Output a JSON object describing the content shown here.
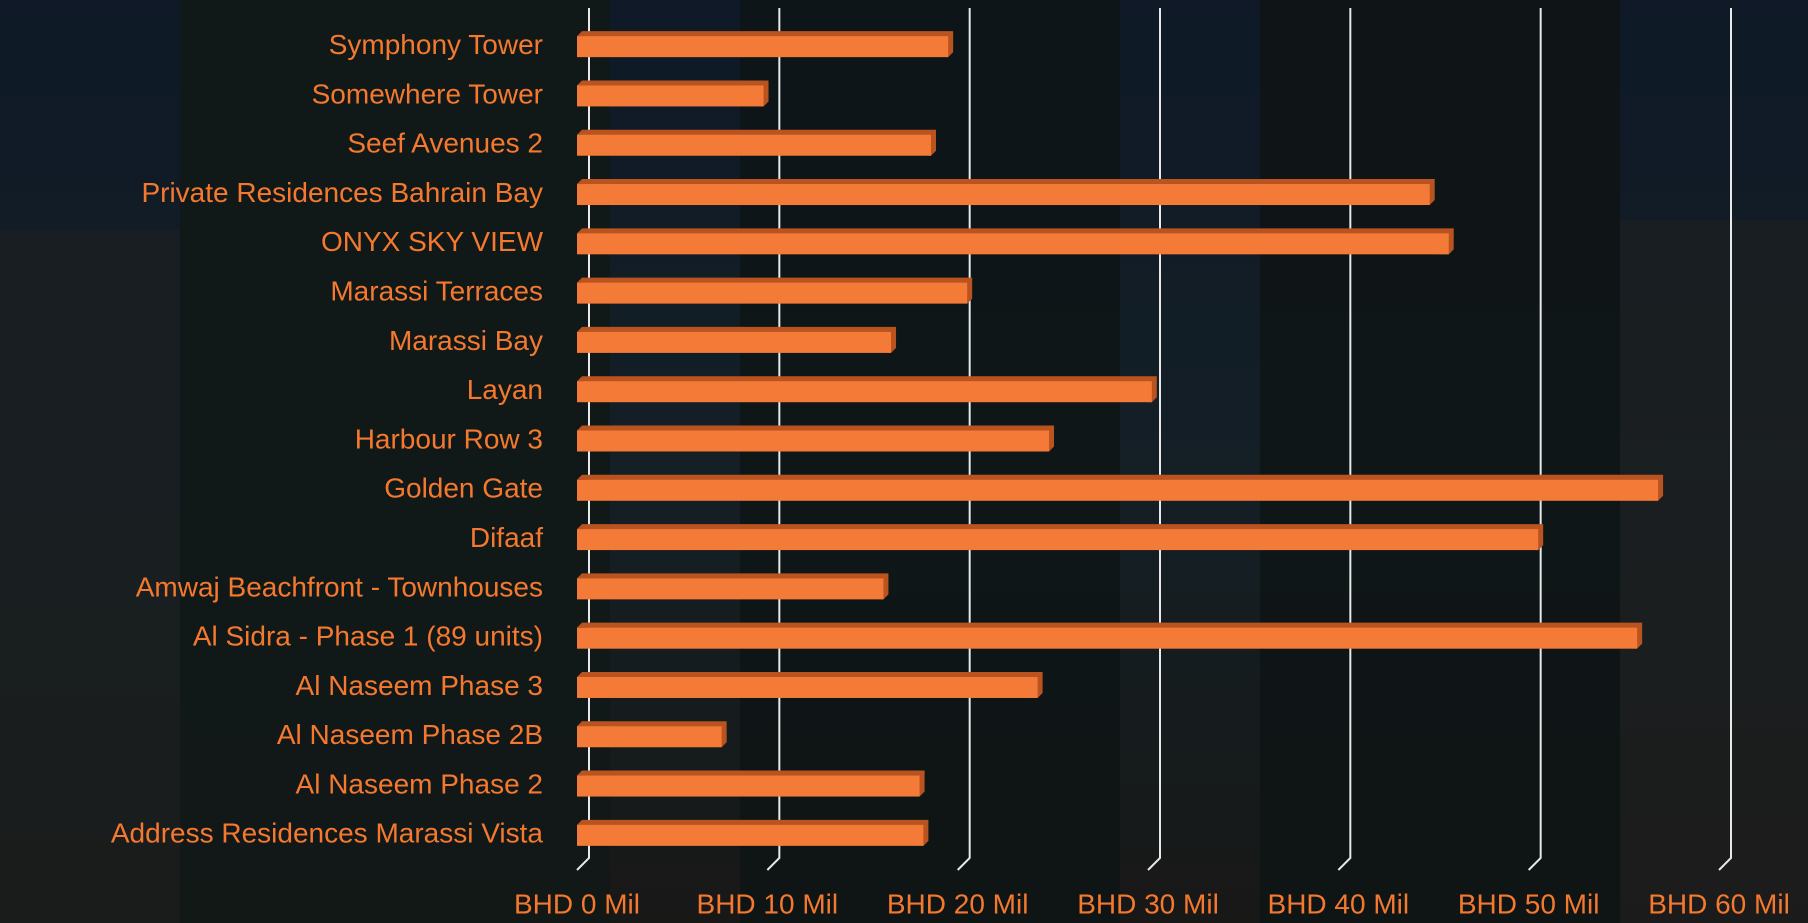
{
  "chart_data": {
    "type": "bar",
    "orientation": "horizontal",
    "color": "#f47a38",
    "grid": true,
    "categories": [
      "Symphony Tower",
      "Somewhere Tower",
      "Seef Avenues 2",
      "Private Residences Bahrain Bay",
      "ONYX SKY VIEW",
      "Marassi Terraces",
      "Marassi Bay",
      "Layan",
      "Harbour Row 3",
      "Golden Gate",
      "Difaaf",
      "Amwaj Beachfront - Townhouses",
      "Al Sidra - Phase 1 (89 units)",
      "Al Naseem Phase 3",
      "Al Naseem Phase 2B",
      "Al Naseem Phase 2",
      "Address Residences Marassi Vista"
    ],
    "values": [
      19.5,
      9.8,
      18.6,
      44.8,
      45.8,
      20.5,
      16.5,
      30.2,
      24.8,
      56.8,
      50.5,
      16.1,
      55.7,
      24.2,
      7.6,
      18,
      18.2
    ],
    "xlim": [
      0,
      60
    ],
    "xticks": [
      {
        "value": 0,
        "label": "BHD 0 Mil"
      },
      {
        "value": 10,
        "label": "BHD 10 Mil"
      },
      {
        "value": 20,
        "label": "BHD 20 Mil"
      },
      {
        "value": 30,
        "label": "BHD 30 Mil"
      },
      {
        "value": 40,
        "label": "BHD 40 Mil"
      },
      {
        "value": 50,
        "label": "BHD 50 Mil"
      },
      {
        "value": 60,
        "label": "BHD 60 Mil"
      }
    ]
  }
}
